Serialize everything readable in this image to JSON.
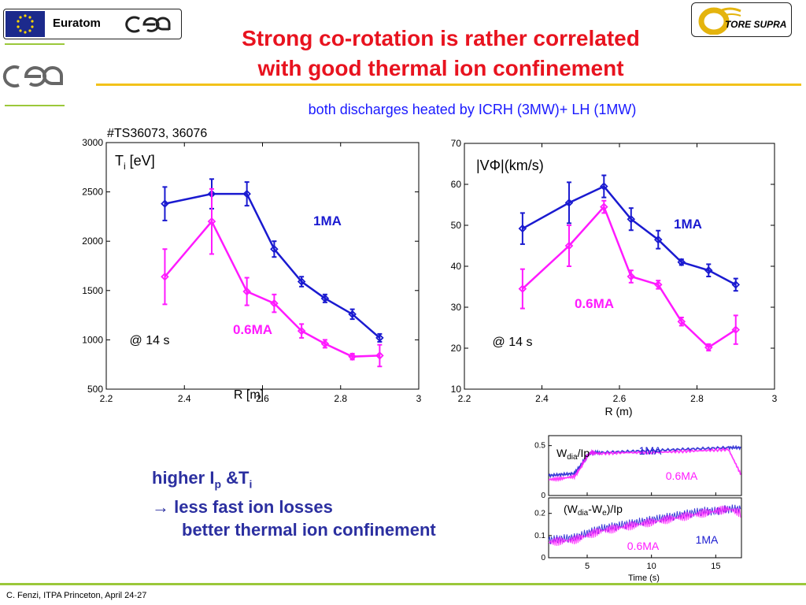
{
  "header": {
    "title_line1": "Strong co-rotation is rather correlated",
    "title_line2": "with good thermal ion confinement",
    "subtitle": "both discharges heated by ICRH (3MW)+ LH (1MW)",
    "euratom_label": "Euratom",
    "tore_supra_label": "TORE SUPRA"
  },
  "summary": {
    "line1_a": "higher I",
    "line1_sub1": "p",
    "line1_b": " &T",
    "line1_sub2": "i",
    "line2": "→ less fast ion losses",
    "line3": "better thermal ion confinement"
  },
  "footer": {
    "text": "C. Fenzi, ITPA Princeton, April 24-27"
  },
  "colors": {
    "blue": "#1a1ad0",
    "magenta": "#ff1aff",
    "title_red": "#e8131f",
    "summary_blue": "#2b2fa0"
  },
  "chart_data": [
    {
      "type": "line",
      "annotation_top": "#TS36073, 36076",
      "ylabel_main": "T",
      "ylabel_sub": "i",
      "ylabel_unit": " [eV]",
      "xlabel": "R [m]",
      "time_label": "@ 14 s",
      "xlim": [
        2.2,
        3
      ],
      "ylim": [
        500,
        3000
      ],
      "xticks": [
        2.2,
        2.4,
        2.6,
        2.8,
        3
      ],
      "yticks": [
        500,
        1000,
        1500,
        2000,
        2500,
        3000
      ],
      "series": [
        {
          "name": "1MA",
          "color": "#1a1ad0",
          "x": [
            2.35,
            2.47,
            2.56,
            2.63,
            2.7,
            2.76,
            2.83,
            2.9
          ],
          "y": [
            2380,
            2480,
            2480,
            1920,
            1590,
            1420,
            1260,
            1020
          ],
          "err": [
            170,
            150,
            120,
            80,
            50,
            40,
            50,
            40
          ]
        },
        {
          "name": "0.6MA",
          "color": "#ff1aff",
          "x": [
            2.35,
            2.47,
            2.56,
            2.63,
            2.7,
            2.76,
            2.83,
            2.9
          ],
          "y": [
            1640,
            2200,
            1490,
            1370,
            1090,
            960,
            830,
            840
          ],
          "err": [
            280,
            330,
            140,
            90,
            70,
            40,
            30,
            110
          ]
        }
      ]
    },
    {
      "type": "line",
      "ylabel": "|VΦ|(km/s)",
      "xlabel": "R (m)",
      "time_label": "@ 14 s",
      "xlim": [
        2.2,
        3
      ],
      "ylim": [
        10,
        70
      ],
      "xticks": [
        2.2,
        2.4,
        2.6,
        2.8,
        3
      ],
      "yticks": [
        10,
        20,
        30,
        40,
        50,
        60,
        70
      ],
      "series": [
        {
          "name": "1MA",
          "color": "#1a1ad0",
          "x": [
            2.35,
            2.47,
            2.56,
            2.63,
            2.7,
            2.76,
            2.83,
            2.9
          ],
          "y": [
            49.2,
            55.5,
            59.5,
            51.5,
            46.5,
            41,
            39,
            35.5
          ],
          "err": [
            3.8,
            5,
            2.7,
            2.7,
            2.2,
            0.7,
            1.5,
            1.5
          ]
        },
        {
          "name": "0.6MA",
          "color": "#ff1aff",
          "x": [
            2.35,
            2.47,
            2.56,
            2.63,
            2.7,
            2.76,
            2.83,
            2.9
          ],
          "y": [
            34.5,
            45,
            54.5,
            37.5,
            35.5,
            26.5,
            20.2,
            24.5
          ],
          "err": [
            4.8,
            5,
            1.5,
            1.5,
            1,
            1,
            0.8,
            3.5
          ]
        }
      ]
    },
    {
      "type": "line",
      "ylabel_main": "W",
      "ylabel_sub": "dia",
      "ylabel_unit": "/Ip",
      "ylim": [
        0,
        0.6
      ],
      "yticks": [
        0,
        0.5
      ],
      "xlim": [
        2,
        17
      ],
      "series": [
        {
          "name": "1MA",
          "color": "#1a1ad0",
          "x": [
            2,
            3,
            4,
            4.5,
            5,
            5.3,
            6,
            8,
            10,
            12,
            14,
            16,
            17
          ],
          "y": [
            0.2,
            0.21,
            0.22,
            0.3,
            0.4,
            0.43,
            0.43,
            0.44,
            0.45,
            0.46,
            0.47,
            0.48,
            0.48
          ]
        },
        {
          "name": "0.6MA",
          "color": "#ff1aff",
          "x": [
            2,
            3,
            4,
            4.5,
            5,
            5.3,
            6,
            8,
            10,
            12,
            14,
            16,
            17
          ],
          "y": [
            0.16,
            0.17,
            0.19,
            0.28,
            0.4,
            0.43,
            0.42,
            0.43,
            0.43,
            0.44,
            0.45,
            0.46,
            0.2
          ]
        }
      ]
    },
    {
      "type": "line",
      "ylabel_main": "(W",
      "ylabel_sub1": "dia",
      "ylabel_mid": "-W",
      "ylabel_sub2": "e",
      "ylabel_unit": ")/Ip",
      "xlabel": "Time (s)",
      "ylim": [
        0,
        0.27
      ],
      "yticks": [
        0,
        0.1,
        0.2
      ],
      "xlim": [
        2,
        17
      ],
      "xticks": [
        5,
        10,
        15
      ],
      "series": [
        {
          "name": "1MA",
          "color": "#1a1ad0",
          "x": [
            2,
            3,
            4,
            5,
            6,
            7,
            8,
            9,
            10,
            11,
            12,
            13,
            14,
            15,
            16,
            17
          ],
          "y": [
            0.08,
            0.085,
            0.09,
            0.11,
            0.13,
            0.14,
            0.15,
            0.16,
            0.17,
            0.18,
            0.19,
            0.2,
            0.21,
            0.21,
            0.22,
            0.22
          ]
        },
        {
          "name": "0.6MA",
          "color": "#ff1aff",
          "x": [
            2,
            3,
            4,
            5,
            6,
            7,
            8,
            9,
            10,
            11,
            12,
            13,
            14,
            15,
            16,
            17
          ],
          "y": [
            0.07,
            0.075,
            0.08,
            0.1,
            0.12,
            0.13,
            0.14,
            0.15,
            0.16,
            0.17,
            0.18,
            0.19,
            0.2,
            0.21,
            0.22,
            0.2
          ]
        }
      ]
    }
  ]
}
